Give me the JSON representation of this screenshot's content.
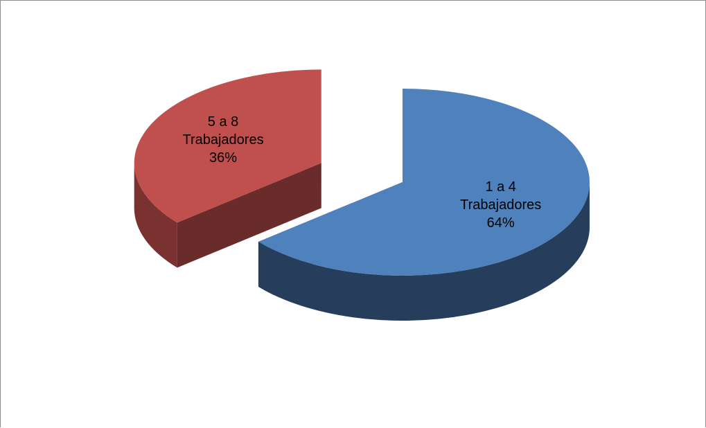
{
  "chart_data": {
    "type": "pie3d",
    "categories": [
      "1 a 4 Trabajadores",
      "5 a 8 Trabajadores"
    ],
    "values": [
      64,
      36
    ],
    "value_labels": [
      "64%",
      "36%"
    ],
    "colors": [
      "#4f81bd",
      "#c0504d"
    ],
    "exploded": [
      false,
      true
    ]
  }
}
